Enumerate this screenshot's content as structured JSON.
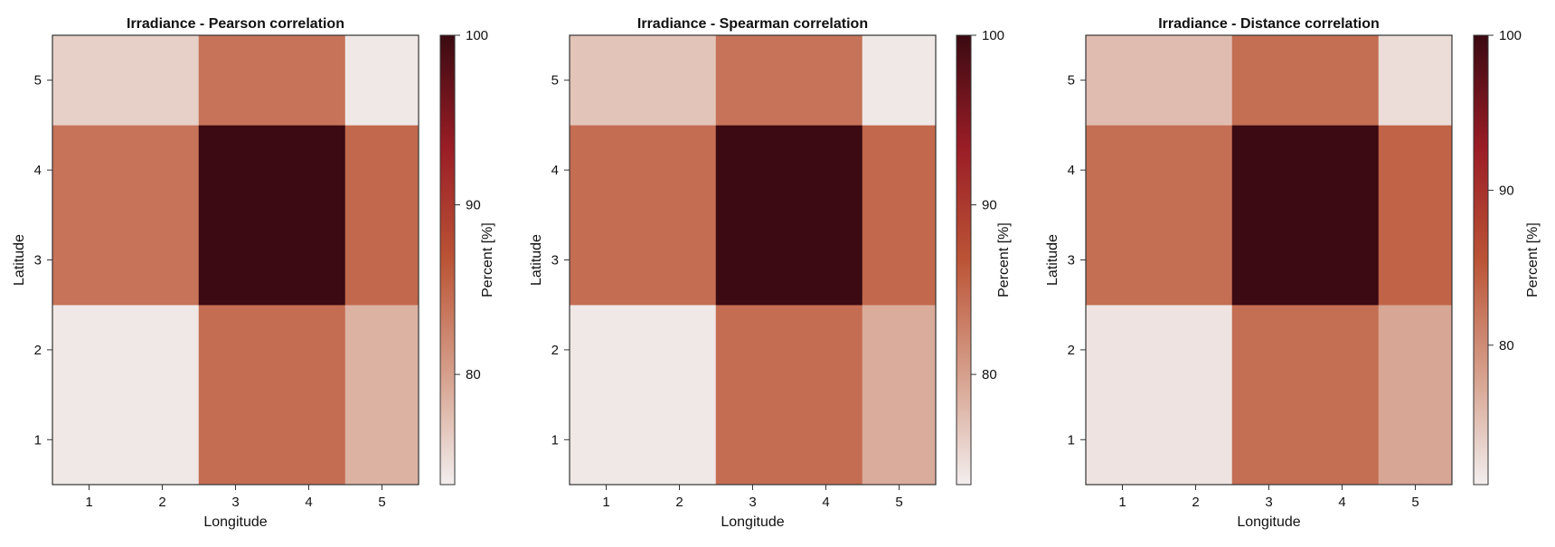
{
  "chart_data": [
    {
      "type": "heatmap",
      "title": "Irradiance - Pearson correlation",
      "xlabel": "Longitude",
      "ylabel": "Latitude",
      "colorbar_label": "Percent [%]",
      "x_ticks": [
        "1",
        "2",
        "3",
        "4",
        "5"
      ],
      "y_ticks": [
        "1",
        "2",
        "3",
        "4",
        "5"
      ],
      "colorbar_range": [
        73.5,
        100
      ],
      "colorbar_ticks": [
        80,
        90,
        100
      ],
      "x_edges": [
        0.5,
        2.5,
        4.5,
        5.5
      ],
      "y_edges": [
        0.5,
        2.5,
        4.5,
        5.5
      ],
      "values": [
        [
          74.0,
          84.5,
          78.5
        ],
        [
          84.0,
          100.0,
          85.0
        ],
        [
          76.0,
          84.0,
          74.0
        ]
      ]
    },
    {
      "type": "heatmap",
      "title": "Irradiance - Spearman correlation",
      "xlabel": "Longitude",
      "ylabel": "Latitude",
      "colorbar_label": "Percent [%]",
      "x_ticks": [
        "1",
        "2",
        "3",
        "4",
        "5"
      ],
      "y_ticks": [
        "1",
        "2",
        "3",
        "4",
        "5"
      ],
      "colorbar_range": [
        73.5,
        100
      ],
      "colorbar_ticks": [
        80,
        90,
        100
      ],
      "x_edges": [
        0.5,
        2.5,
        4.5,
        5.5
      ],
      "y_edges": [
        0.5,
        2.5,
        4.5,
        5.5
      ],
      "values": [
        [
          74.0,
          84.5,
          79.0
        ],
        [
          84.5,
          100.0,
          85.0
        ],
        [
          77.0,
          84.0,
          74.0
        ]
      ]
    },
    {
      "type": "heatmap",
      "title": "Irradiance - Distance correlation",
      "xlabel": "Longitude",
      "ylabel": "Latitude",
      "colorbar_label": "Percent [%]",
      "x_ticks": [
        "1",
        "2",
        "3",
        "4",
        "5"
      ],
      "y_ticks": [
        "1",
        "2",
        "3",
        "4",
        "5"
      ],
      "colorbar_range": [
        71,
        100
      ],
      "colorbar_ticks": [
        80,
        90,
        100
      ],
      "x_edges": [
        0.5,
        2.5,
        4.5,
        5.5
      ],
      "y_edges": [
        0.5,
        2.5,
        4.5,
        5.5
      ],
      "values": [
        [
          72.0,
          83.0,
          77.5
        ],
        [
          83.0,
          100.0,
          84.0
        ],
        [
          75.5,
          83.0,
          72.5
        ]
      ]
    }
  ],
  "colormap": [
    "#f2eeee",
    "#d59e8a",
    "#bb5436",
    "#9a1d26",
    "#3b0a12"
  ]
}
